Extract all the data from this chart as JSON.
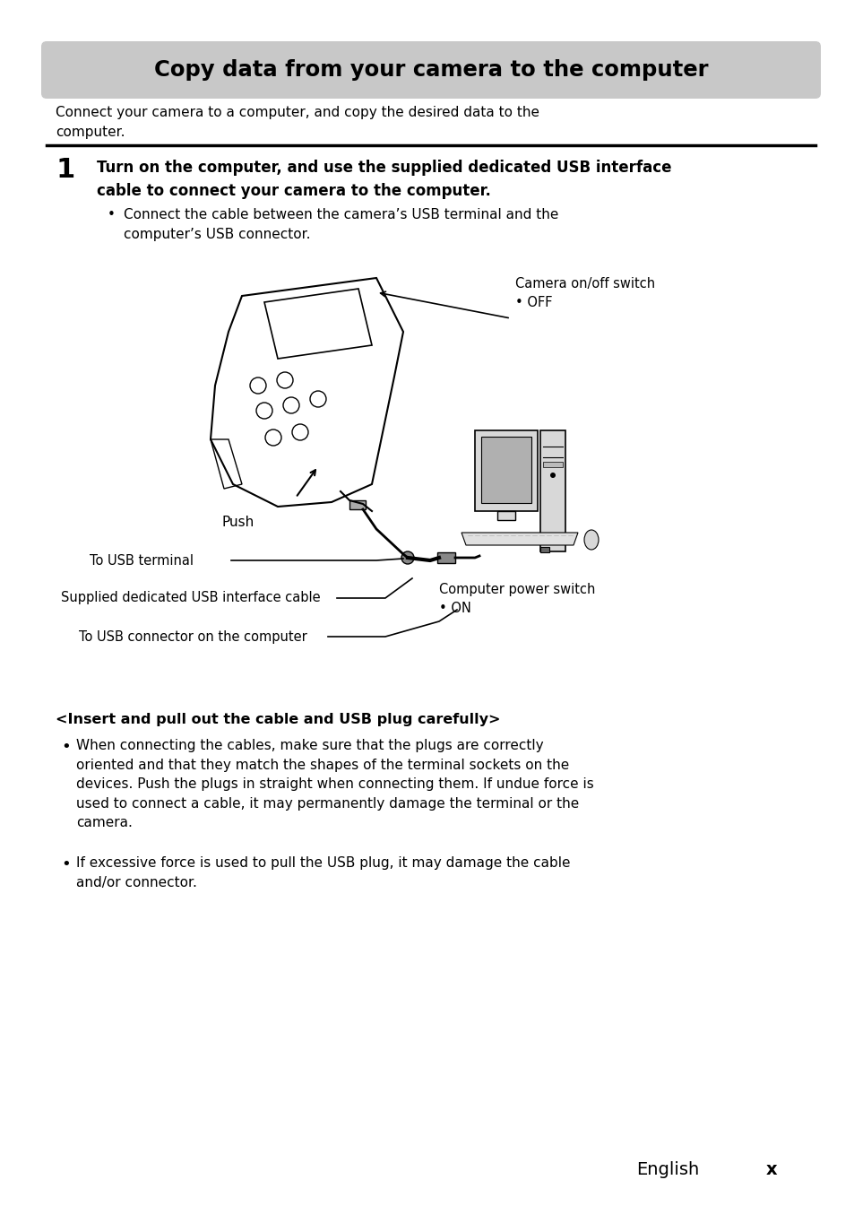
{
  "bg_color": "#ffffff",
  "title_text": "Copy data from your camera to the computer",
  "title_bg": "#c8c8c8",
  "intro_text": "Connect your camera to a computer, and copy the desired data to the\ncomputer.",
  "step_number": "1",
  "step_bold": "Turn on the computer, and use the supplied dedicated USB interface\ncable to connect your camera to the computer.",
  "step_bullet": "Connect the cable between the camera’s USB terminal and the\ncomputer’s USB connector.",
  "label_camera_switch": "Camera on/off switch\n• OFF",
  "label_push": "Push",
  "label_usb_terminal": "To USB terminal",
  "label_usb_cable": "Supplied dedicated USB interface cable",
  "label_computer_switch": "Computer power switch\n• ON",
  "label_usb_connector": "To USB connector on the computer",
  "warning_title": "<Insert and pull out the cable and USB plug carefully>",
  "warning_bullet1": "When connecting the cables, make sure that the plugs are correctly\noriented and that they match the shapes of the terminal sockets on the\ndevices. Push the plugs in straight when connecting them. If undue force is\nused to connect a cable, it may permanently damage the terminal or the\ncamera.",
  "warning_bullet2": "If excessive force is used to pull the USB plug, it may damage the cable\nand/or connector.",
  "footer_text": "English",
  "footer_page": "x"
}
